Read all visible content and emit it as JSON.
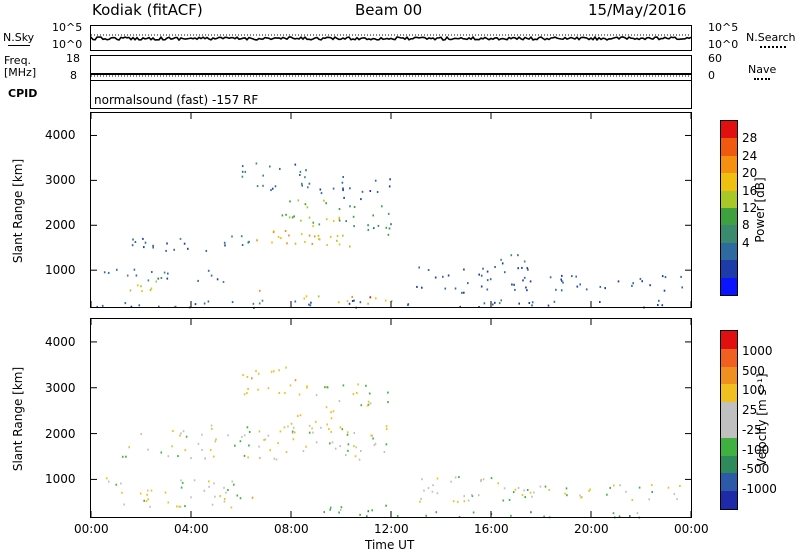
{
  "header": {
    "station": "Kodiak (fitACF)",
    "beam": "Beam 00",
    "date": "15/May/2016"
  },
  "strip": {
    "nsky_label": "N.Sky",
    "nsky_ticks": [
      "10^5",
      "10^0"
    ],
    "nsearch_label": "N.Search",
    "nsearch_ticks": [
      "10^5",
      "10^0"
    ],
    "freq_label": "Freq.",
    "freq_unit": "[MHz]",
    "freq_ticks": [
      "18",
      "8"
    ],
    "nave_label": "Nave",
    "nave_ticks": [
      "60",
      "0"
    ],
    "cpid_label": "CPID",
    "cpid_text": "normalsound (fast) -157 RF"
  },
  "axes": {
    "ylabel": "Slant Range [km]",
    "yticks": [
      "4000",
      "3000",
      "2000",
      "1000"
    ],
    "xlabel": "Time UT",
    "xticks": [
      "00:00",
      "04:00",
      "08:00",
      "12:00",
      "16:00",
      "20:00",
      "00:00"
    ]
  },
  "power_scale": {
    "label": "Power [dB]",
    "ticks": [
      "28",
      "24",
      "20",
      "16",
      "12",
      "8",
      "4"
    ],
    "colors": [
      "#0a14ff",
      "#1e3ca8",
      "#2d6aa0",
      "#3a8a70",
      "#3fa040",
      "#a8c828",
      "#f0c010",
      "#f59010",
      "#f05a10",
      "#e01010"
    ]
  },
  "velocity_scale": {
    "label": "Velocity [m s⁻¹]",
    "ticks": [
      "1000",
      "500",
      "100",
      "25",
      "-25",
      "-100",
      "-500",
      "-1000"
    ],
    "colors": [
      "#1e2aa8",
      "#2d5aa8",
      "#2e8a5a",
      "#40b040",
      "#c0c0c0",
      "#c0c0c0",
      "#f0c020",
      "#f09020",
      "#f06020",
      "#e01010"
    ]
  },
  "chart_data": [
    {
      "type": "heatmap",
      "name": "Power",
      "x_range_hours": [
        0,
        24
      ],
      "y_range_km": [
        180,
        4500
      ],
      "color_range_db": [
        0,
        30
      ],
      "regions": [
        {
          "t0": 8.0,
          "t1": 10.5,
          "r0": 1500,
          "r1": 2200,
          "v": 18
        },
        {
          "t0": 6.5,
          "t1": 9.5,
          "r0": 1550,
          "r1": 1900,
          "v": 22
        },
        {
          "t0": 7.5,
          "t1": 10.0,
          "r0": 2000,
          "r1": 2600,
          "v": 15
        },
        {
          "t0": 10.0,
          "t1": 12.0,
          "r0": 1800,
          "r1": 2500,
          "v": 11
        },
        {
          "t0": 1.0,
          "t1": 6.5,
          "r0": 1450,
          "r1": 1800,
          "v": 7
        },
        {
          "t0": 6.0,
          "t1": 9.0,
          "r0": 2800,
          "r1": 3500,
          "v": 8
        },
        {
          "t0": 9.0,
          "t1": 12.0,
          "r0": 2600,
          "r1": 3100,
          "v": 6
        },
        {
          "t0": 0.5,
          "t1": 6.0,
          "r0": 700,
          "r1": 1050,
          "v": 8
        },
        {
          "t0": 1.5,
          "t1": 3.0,
          "r0": 500,
          "r1": 800,
          "v": 18
        },
        {
          "t0": 6.2,
          "t1": 6.8,
          "r0": 500,
          "r1": 800,
          "v": 22
        },
        {
          "t0": 8.5,
          "t1": 12.0,
          "r0": 250,
          "r1": 450,
          "v": 20
        },
        {
          "t0": 10.2,
          "t1": 11.2,
          "r0": 250,
          "r1": 420,
          "v": 27
        },
        {
          "t0": 13.0,
          "t1": 17.5,
          "r0": 500,
          "r1": 1100,
          "v": 6
        },
        {
          "t0": 16.0,
          "t1": 17.5,
          "r0": 1100,
          "r1": 1400,
          "v": 7
        },
        {
          "t0": 17.0,
          "t1": 24.0,
          "r0": 550,
          "r1": 900,
          "v": 6
        },
        {
          "t0": 0.0,
          "t1": 24.0,
          "r0": 180,
          "r1": 350,
          "v": 7
        }
      ]
    },
    {
      "type": "heatmap",
      "name": "Velocity",
      "x_range_hours": [
        0,
        24
      ],
      "y_range_km": [
        180,
        4500
      ],
      "regions": [
        {
          "t0": 1.0,
          "t1": 12.0,
          "r0": 1450,
          "r1": 2200,
          "v": 0
        },
        {
          "t0": 7.5,
          "t1": 10.0,
          "r0": 2000,
          "r1": 2600,
          "v": -60
        },
        {
          "t0": 6.0,
          "t1": 9.0,
          "r0": 2800,
          "r1": 3500,
          "v": -80
        },
        {
          "t0": 9.0,
          "t1": 12.0,
          "r0": 2600,
          "r1": 3100,
          "v": 10
        },
        {
          "t0": 0.5,
          "t1": 6.0,
          "r0": 400,
          "r1": 1050,
          "v": 0
        },
        {
          "t0": 6.2,
          "t1": 6.8,
          "r0": 500,
          "r1": 850,
          "v": -250
        },
        {
          "t0": 8.5,
          "t1": 12.0,
          "r0": 250,
          "r1": 450,
          "v": 60
        },
        {
          "t0": 11.0,
          "t1": 22.0,
          "r0": 180,
          "r1": 330,
          "v": 70
        },
        {
          "t0": 13.0,
          "t1": 17.5,
          "r0": 500,
          "r1": 1100,
          "v": 0
        },
        {
          "t0": 17.0,
          "t1": 24.0,
          "r0": 550,
          "r1": 900,
          "v": 0
        }
      ]
    }
  ]
}
